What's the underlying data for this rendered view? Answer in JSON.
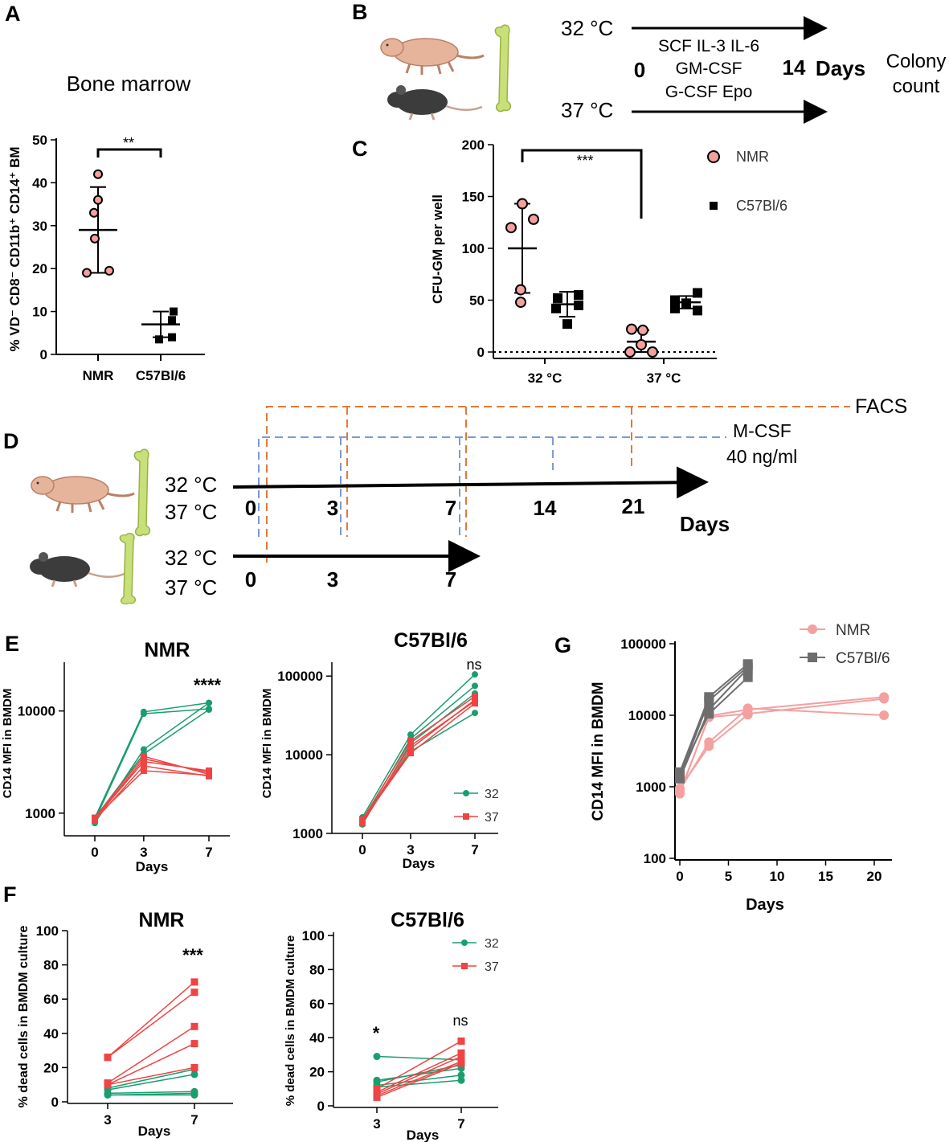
{
  "figure": {
    "panel_labels": [
      "A",
      "B",
      "C",
      "D",
      "E",
      "F",
      "G"
    ],
    "icons": [
      "naked-mole-rat-icon",
      "mouse-icon",
      "femur-bone-icon"
    ]
  },
  "panel_b": {
    "temp_top": "32 °C",
    "temp_bottom": "37 °C",
    "cytokines_line1": "SCF IL-3 IL-6",
    "cytokines_line2": "GM-CSF",
    "cytokines_line3": "G-CSF Epo",
    "start_day": "0",
    "end_day": "14",
    "days_label": "Days",
    "outcome_line1": "Colony",
    "outcome_line2": "count"
  },
  "panel_d": {
    "facs_label": "FACS",
    "mcsf_line1": "M-CSF",
    "mcsf_line2": "40 ng/ml",
    "temp_32": "32 °C",
    "temp_37": "37 °C",
    "nmr_days": [
      "0",
      "3",
      "7",
      "14",
      "21"
    ],
    "mouse_days": [
      "0",
      "3",
      "7"
    ],
    "days_label": "Days"
  },
  "chart_data": [
    {
      "id": "A",
      "type": "scatter",
      "title": "Bone marrow",
      "ylabel": "% VD⁻ CD8⁻ CD11b⁺ CD14⁺ BM",
      "xlabel": "",
      "categories": [
        "NMR",
        "C57Bl/6"
      ],
      "ylim": [
        0,
        50
      ],
      "yticks": [
        0,
        10,
        20,
        30,
        40,
        50
      ],
      "series": [
        {
          "name": "NMR",
          "values": [
            42,
            36,
            33,
            27,
            19,
            19.5
          ],
          "mean": 29,
          "sd_low": 19,
          "sd_high": 39,
          "color": "#f4a0a0"
        },
        {
          "name": "C57Bl/6",
          "values": [
            10,
            8,
            4,
            3.5
          ],
          "mean": 7,
          "sd_low": 4,
          "sd_high": 10,
          "color": "#000000"
        }
      ],
      "significance": "**"
    },
    {
      "id": "C",
      "type": "scatter",
      "title": "",
      "ylabel": "CFU-GM per well",
      "categories": [
        "32 °C",
        "37 °C"
      ],
      "ylim": [
        0,
        200
      ],
      "yticks": [
        0,
        50,
        100,
        150,
        200
      ],
      "legend": [
        "NMR",
        "C57Bl/6"
      ],
      "series": [
        {
          "name": "NMR",
          "values_32": [
            143,
            128,
            120,
            60,
            48
          ],
          "mean_32": 100,
          "sd_32": [
            57,
            143
          ],
          "values_37": [
            22,
            21,
            7,
            0,
            0
          ],
          "mean_37": 10,
          "sd_37": [
            0,
            21
          ],
          "color": "#f4a0a0"
        },
        {
          "name": "C57Bl/6",
          "values_32": [
            55,
            52,
            45,
            42,
            27
          ],
          "mean_32": 46,
          "sd_32": [
            34,
            58
          ],
          "values_37": [
            57,
            50,
            47,
            42,
            40
          ],
          "mean_37": 48,
          "sd_37": [
            42,
            54
          ],
          "color": "#000000"
        }
      ],
      "significance": "***"
    },
    {
      "id": "E-NMR",
      "type": "line",
      "title": "NMR",
      "xlabel": "Days",
      "ylabel": "CD14 MFI in BMDM",
      "x": [
        0,
        3,
        7
      ],
      "yscale": "log",
      "ylim": [
        600,
        30000
      ],
      "yticks": [
        1000,
        10000
      ],
      "significance": "****",
      "series": [
        {
          "name": "32",
          "color": "#1a9e6e",
          "lines": [
            [
              900,
              9800,
              12000
            ],
            [
              850,
              9400,
              10500
            ],
            [
              800,
              4200,
              12000
            ],
            [
              900,
              3800,
              10300
            ]
          ]
        },
        {
          "name": "37",
          "color": "#ee4444",
          "lines": [
            [
              900,
              3600,
              2400
            ],
            [
              880,
              3200,
              2600
            ],
            [
              850,
              2900,
              2300
            ],
            [
              870,
              3400,
              2500
            ],
            [
              890,
              2600,
              2350
            ]
          ]
        }
      ]
    },
    {
      "id": "E-C57",
      "type": "line",
      "title": "C57Bl/6",
      "xlabel": "Days",
      "ylabel": "CD14 MFI in BMDM",
      "x": [
        0,
        3,
        7
      ],
      "yscale": "log",
      "ylim": [
        1000,
        150000
      ],
      "yticks": [
        1000,
        10000,
        100000
      ],
      "significance": "ns",
      "legend": [
        "32",
        "37"
      ],
      "series": [
        {
          "name": "32",
          "color": "#1a9e6e",
          "lines": [
            [
              1600,
              18000,
              105000
            ],
            [
              1400,
              16000,
              75000
            ],
            [
              1300,
              14000,
              60000
            ],
            [
              1500,
              11000,
              34000
            ]
          ]
        },
        {
          "name": "37",
          "color": "#ee4444",
          "lines": [
            [
              1500,
              15000,
              55000
            ],
            [
              1400,
              13000,
              48000
            ],
            [
              1350,
              12000,
              50000
            ],
            [
              1450,
              10500,
              45000
            ]
          ]
        }
      ]
    },
    {
      "id": "F-NMR",
      "type": "line",
      "title": "NMR",
      "xlabel": "Days",
      "ylabel": "% dead cells in BMDM culture",
      "x": [
        3,
        7
      ],
      "ylim": [
        0,
        100
      ],
      "yticks": [
        0,
        20,
        40,
        60,
        80,
        100
      ],
      "significance": "***",
      "series": [
        {
          "name": "32",
          "color": "#1a9e6e",
          "lines": [
            [
              8,
              19
            ],
            [
              7,
              16
            ],
            [
              5,
              6
            ],
            [
              4,
              5
            ],
            [
              4,
              4
            ]
          ]
        },
        {
          "name": "37",
          "color": "#ee4444",
          "lines": [
            [
              26,
              70
            ],
            [
              26,
              64
            ],
            [
              11,
              44
            ],
            [
              10,
              34
            ],
            [
              10,
              20
            ]
          ]
        }
      ]
    },
    {
      "id": "F-C57",
      "type": "line",
      "title": "C57Bl/6",
      "xlabel": "Days",
      "ylabel": "% dead cells in BMDM culture",
      "x": [
        3,
        7
      ],
      "ylim": [
        0,
        100
      ],
      "yticks": [
        0,
        20,
        40,
        60,
        80,
        100
      ],
      "significance_day3": "*",
      "significance_day7": "ns",
      "legend": [
        "32",
        "37"
      ],
      "series": [
        {
          "name": "32",
          "color": "#1a9e6e",
          "lines": [
            [
              29,
              27
            ],
            [
              15,
              22
            ],
            [
              14,
              24
            ],
            [
              12,
              18
            ],
            [
              11,
              15
            ]
          ]
        },
        {
          "name": "37",
          "color": "#ee4444",
          "lines": [
            [
              10,
              38
            ],
            [
              8,
              31
            ],
            [
              7,
              29
            ],
            [
              6,
              26
            ],
            [
              5,
              25
            ]
          ]
        }
      ]
    },
    {
      "id": "G",
      "type": "line",
      "title": "",
      "xlabel": "Days",
      "ylabel": "CD14 MFI in BMDM",
      "x_range": [
        0,
        22
      ],
      "xticks": [
        0,
        5,
        10,
        15,
        20
      ],
      "yscale": "log",
      "ylim": [
        100,
        100000
      ],
      "yticks": [
        100,
        1000,
        10000,
        100000
      ],
      "legend": [
        "NMR",
        "C57Bl/6"
      ],
      "series": [
        {
          "name": "NMR",
          "color": "#f4a0a0",
          "marker": "circle",
          "lines": [
            {
              "x": [
                0,
                3,
                7,
                21
              ],
              "y": [
                800,
                9800,
                12000,
                18000
              ]
            },
            {
              "x": [
                0,
                3,
                7,
                21
              ],
              "y": [
                850,
                9400,
                10500,
                17000
              ]
            },
            {
              "x": [
                0,
                3,
                7,
                21
              ],
              "y": [
                900,
                4200,
                12500,
                10000
              ]
            },
            {
              "x": [
                0,
                3,
                7
              ],
              "y": [
                950,
                3700,
                10200
              ]
            }
          ]
        },
        {
          "name": "C57Bl/6",
          "color": "#6e6e6e",
          "marker": "square",
          "lines": [
            {
              "x": [
                0,
                3,
                7
              ],
              "y": [
                1600,
                18000,
                52000
              ]
            },
            {
              "x": [
                0,
                3,
                7
              ],
              "y": [
                1400,
                16000,
                48000
              ]
            },
            {
              "x": [
                0,
                3,
                7
              ],
              "y": [
                1300,
                12000,
                45000
              ]
            },
            {
              "x": [
                0,
                3,
                7
              ],
              "y": [
                1500,
                10500,
                34000
              ]
            }
          ]
        }
      ]
    }
  ]
}
